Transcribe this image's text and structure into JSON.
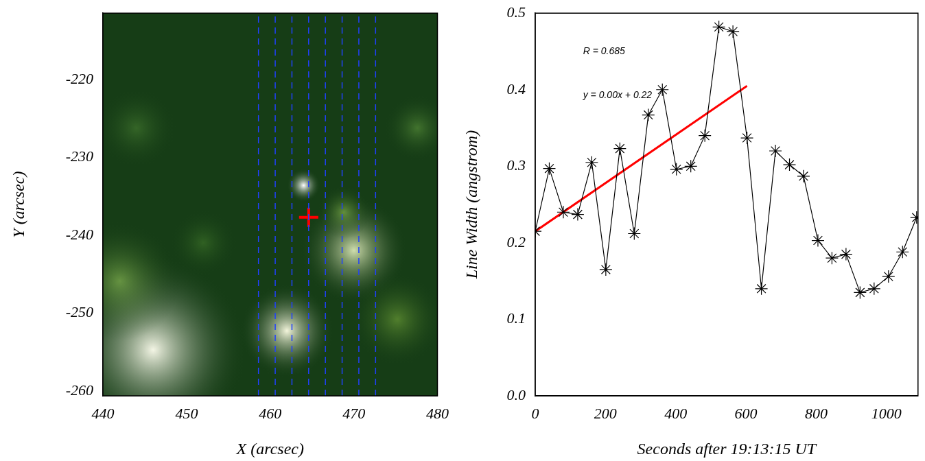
{
  "chart_data": [
    {
      "type": "scatter",
      "xlabel": "X (arcsec)",
      "ylabel": "Y (arcsec)",
      "xlim": [
        440,
        480
      ],
      "ylim": [
        -260.6,
        -211.5
      ],
      "xticks": [
        440,
        450,
        460,
        470,
        480
      ],
      "yticks": [
        -260,
        -250,
        -240,
        -230,
        -220
      ],
      "grid": false,
      "series": [
        {
          "type": "vline",
          "color": "#2040ff",
          "line_style": "dashed",
          "x": [
            458.6,
            460.6,
            462.6,
            464.6,
            466.6,
            468.6,
            470.6,
            472.6
          ]
        },
        {
          "type": "scatter",
          "color": "#ff0000",
          "marker": "cross",
          "x": [
            464.6
          ],
          "values": [
            -237.7
          ]
        }
      ]
    },
    {
      "type": "line",
      "xlabel": "Seconds after 19:13:15 UT",
      "ylabel": "Line Width (angstrom)",
      "xlim": [
        0,
        1090
      ],
      "ylim": [
        0,
        0.5
      ],
      "xticks": [
        0,
        200,
        400,
        600,
        800,
        1000
      ],
      "yticks": [
        {
          "value": 0,
          "label": "0.0"
        },
        0.1,
        0.2,
        0.3,
        0.4,
        0.5
      ],
      "grid": false,
      "annotations": [
        "R = 0.685",
        "y = 0.00x + 0.22"
      ],
      "series": [
        {
          "type": "line",
          "color": "#000000",
          "marker": "asterisk",
          "line_style": "solid",
          "x": [
            0,
            40,
            80,
            121,
            161,
            201,
            241,
            282,
            322,
            362,
            402,
            443,
            483,
            523,
            563,
            603,
            644,
            684,
            724,
            764,
            805,
            845,
            885,
            925,
            965,
            1006,
            1046,
            1086
          ],
          "values": [
            0.215,
            0.297,
            0.24,
            0.237,
            0.305,
            0.165,
            0.323,
            0.212,
            0.367,
            0.4,
            0.296,
            0.3,
            0.34,
            0.482,
            0.476,
            0.337,
            0.14,
            0.32,
            0.302,
            0.287,
            0.203,
            0.18,
            0.185,
            0.135,
            0.14,
            0.156,
            0.188,
            0.233
          ]
        },
        {
          "type": "line",
          "color": "#ff0000",
          "marker": "none",
          "line_style": "solid",
          "x": [
            0,
            603
          ],
          "values": [
            0.215,
            0.405
          ]
        }
      ]
    }
  ]
}
